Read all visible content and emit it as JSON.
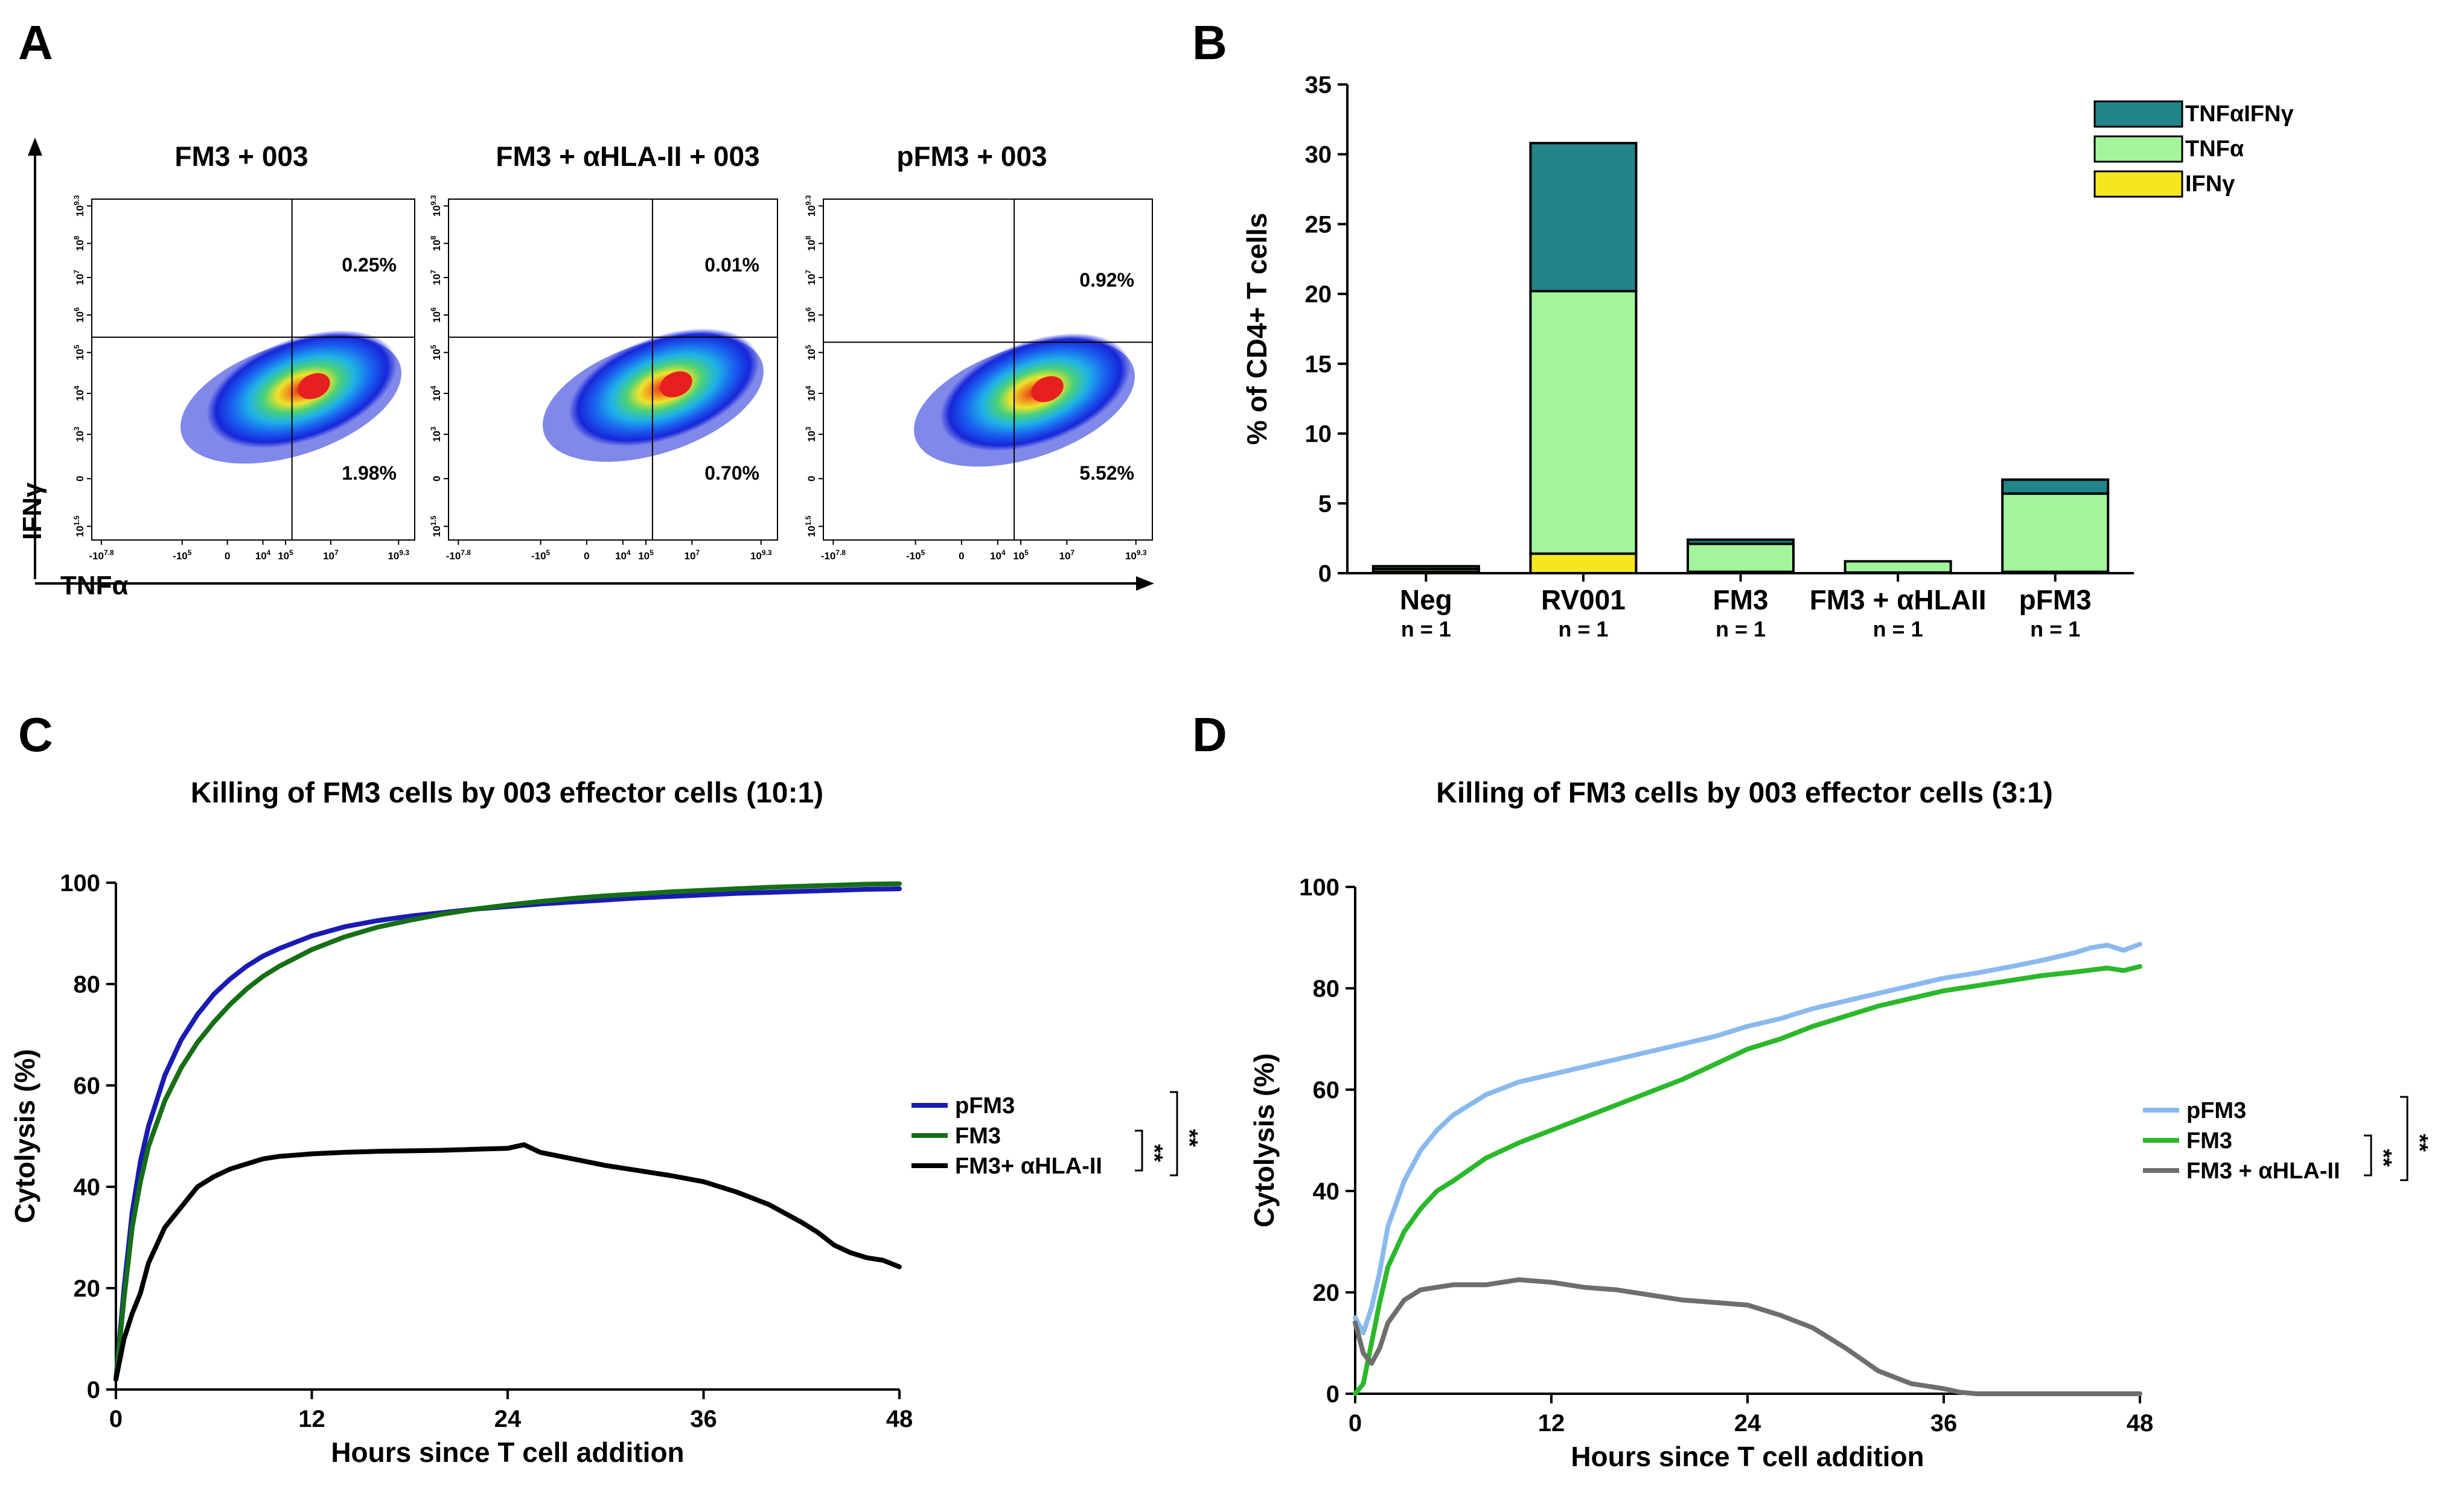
{
  "panel_labels": {
    "a": "A",
    "b": "B",
    "c": "C",
    "d": "D"
  },
  "flow": {
    "y_axis_label": "IFNγ",
    "x_axis_label": "TNFα",
    "x_ticks": [
      "-10^7.8",
      "-10^5",
      "0",
      "10^4",
      "10^5",
      "10^7",
      "10^9.3"
    ],
    "y_ticks": [
      "10^9.3",
      "10^8",
      "10^7",
      "10^6",
      "10^5",
      "10^4",
      "10^3",
      "0",
      "10^1.5"
    ],
    "plots": [
      {
        "title": "FM3 + 003",
        "upper_right_pct": "0.25%",
        "lower_right_pct": "1.98%"
      },
      {
        "title": "FM3 + αHLA-II +  003",
        "upper_right_pct": "0.01%",
        "lower_right_pct": "0.70%"
      },
      {
        "title": "pFM3 + 003",
        "upper_right_pct": "0.92%",
        "lower_right_pct": "5.52%"
      }
    ]
  },
  "chart_data": [
    {
      "type": "bar",
      "stacked": true,
      "title": "",
      "ylabel": "% of CD4+ T cells",
      "ylim": [
        0,
        35
      ],
      "yticks": [
        0,
        5,
        10,
        15,
        20,
        25,
        30,
        35
      ],
      "categories": [
        "Neg",
        "RV001",
        "FM3",
        "FM3 + αHLAII",
        "pFM3"
      ],
      "n_labels": [
        "n = 1",
        "n = 1",
        "n = 1",
        "n = 1",
        "n = 1"
      ],
      "series": [
        {
          "name": "IFNγ",
          "color": "#f5e61e",
          "values": [
            0.1,
            1.4,
            0.1,
            0.05,
            0.1
          ]
        },
        {
          "name": "TNFα",
          "color": "#a3f59c",
          "values": [
            0.2,
            18.8,
            2.0,
            0.8,
            5.6
          ]
        },
        {
          "name": "TNFαIFNγ",
          "color": "#23848a",
          "values": [
            0.2,
            10.6,
            0.3,
            0.0,
            1.0
          ]
        }
      ],
      "legend_order": [
        "TNFαIFNγ",
        "TNFα",
        "IFNγ"
      ],
      "legend_position": "top-right"
    },
    {
      "type": "line",
      "title": "Killing of FM3 cells by 003 effector cells (10:1)",
      "xlabel": "Hours since T cell addition",
      "ylabel": "Cytolysis (%)",
      "xlim": [
        0,
        48
      ],
      "ylim": [
        0,
        100
      ],
      "xticks": [
        0,
        12,
        24,
        36,
        48
      ],
      "yticks": [
        0,
        20,
        40,
        60,
        80,
        100
      ],
      "significance": [
        "**",
        "**"
      ],
      "series": [
        {
          "name": "pFM3",
          "color": "#1a1ab4",
          "x": [
            0,
            0.5,
            1,
            1.5,
            2,
            3,
            4,
            5,
            6,
            7,
            8,
            9,
            10,
            12,
            14,
            16,
            18,
            20,
            22,
            24,
            26,
            28,
            30,
            32,
            34,
            36,
            38,
            40,
            42,
            44,
            46,
            48
          ],
          "y": [
            2,
            20,
            35,
            45,
            52,
            62,
            69,
            74,
            78,
            81,
            83.5,
            85.5,
            87,
            89.5,
            91.3,
            92.5,
            93.4,
            94.1,
            94.8,
            95.3,
            95.8,
            96.2,
            96.6,
            97,
            97.3,
            97.6,
            97.9,
            98.1,
            98.3,
            98.5,
            98.7,
            98.8
          ]
        },
        {
          "name": "FM3",
          "color": "#166e16",
          "x": [
            0,
            0.5,
            1,
            1.5,
            2,
            3,
            4,
            5,
            6,
            7,
            8,
            9,
            10,
            12,
            14,
            16,
            18,
            20,
            22,
            24,
            26,
            28,
            30,
            32,
            34,
            36,
            38,
            40,
            42,
            44,
            46,
            48
          ],
          "y": [
            2,
            18,
            32,
            41,
            48,
            57,
            63.5,
            68.5,
            72.5,
            76,
            79,
            81.5,
            83.5,
            86.8,
            89.3,
            91.2,
            92.6,
            93.8,
            94.8,
            95.6,
            96.3,
            96.9,
            97.4,
            97.8,
            98.2,
            98.5,
            98.8,
            99.1,
            99.3,
            99.5,
            99.7,
            99.8
          ]
        },
        {
          "name": "FM3+ αHLA-II",
          "color": "#000000",
          "x": [
            0,
            0.5,
            1,
            1.5,
            2,
            3,
            4,
            5,
            6,
            7,
            8,
            9,
            10,
            12,
            14,
            16,
            18,
            20,
            22,
            24,
            25,
            26,
            28,
            30,
            32,
            34,
            36,
            38,
            40,
            42,
            43,
            44,
            45,
            46,
            47,
            48
          ],
          "y": [
            2,
            10,
            15,
            19,
            25,
            32,
            36,
            40,
            42,
            43.5,
            44.5,
            45.5,
            46,
            46.5,
            46.8,
            47,
            47.1,
            47.2,
            47.4,
            47.6,
            48.3,
            46.8,
            45.5,
            44.2,
            43.2,
            42.2,
            41,
            39,
            36.5,
            33,
            31,
            28.5,
            27,
            26,
            25.5,
            24.2
          ]
        }
      ]
    },
    {
      "type": "line",
      "title": "Killing of FM3 cells by 003 effector cells (3:1)",
      "xlabel": "Hours since T cell addition",
      "ylabel": "Cytolysis (%)",
      "xlim": [
        0,
        48
      ],
      "ylim": [
        0,
        100
      ],
      "xticks": [
        0,
        12,
        24,
        36,
        48
      ],
      "yticks": [
        0,
        20,
        40,
        60,
        80,
        100
      ],
      "significance": [
        "**",
        "**"
      ],
      "series": [
        {
          "name": "pFM3",
          "color": "#8ab9ee",
          "x": [
            0,
            0.5,
            1,
            1.5,
            2,
            3,
            4,
            5,
            6,
            8,
            10,
            12,
            14,
            16,
            18,
            20,
            22,
            24,
            26,
            28,
            30,
            32,
            34,
            36,
            38,
            40,
            42,
            44,
            45,
            46,
            47,
            48
          ],
          "y": [
            15,
            12,
            17,
            24,
            33,
            42,
            48,
            52,
            55,
            59,
            61.5,
            63,
            64.5,
            66,
            67.5,
            69,
            70.5,
            72.5,
            74,
            76,
            77.5,
            79,
            80.5,
            82,
            83,
            84.2,
            85.5,
            87,
            88,
            88.5,
            87.5,
            88.7
          ]
        },
        {
          "name": "FM3",
          "color": "#2bb82b",
          "x": [
            0,
            0.5,
            1,
            1.5,
            2,
            3,
            4,
            5,
            6,
            8,
            10,
            12,
            14,
            16,
            18,
            20,
            22,
            24,
            26,
            28,
            30,
            32,
            34,
            36,
            38,
            40,
            42,
            44,
            46,
            47,
            48
          ],
          "y": [
            0,
            2,
            10,
            18,
            25,
            32,
            36.5,
            40,
            42,
            46.5,
            49.5,
            52,
            54.5,
            57,
            59.5,
            62,
            65,
            68,
            70,
            72.5,
            74.5,
            76.5,
            78,
            79.5,
            80.5,
            81.5,
            82.5,
            83.2,
            84,
            83.5,
            84.3
          ]
        },
        {
          "name": "FM3 + αHLA-II",
          "color": "#6e6e6e",
          "x": [
            0,
            0.5,
            1,
            1.5,
            2,
            3,
            4,
            5,
            6,
            8,
            10,
            12,
            14,
            16,
            18,
            20,
            22,
            24,
            26,
            28,
            30,
            32,
            34,
            36,
            37,
            38,
            40,
            44,
            48
          ],
          "y": [
            14,
            8,
            6,
            9,
            14,
            18.5,
            20.5,
            21,
            21.5,
            21.5,
            22.5,
            22,
            21,
            20.5,
            19.5,
            18.5,
            18,
            17.5,
            15.5,
            13,
            9,
            4.5,
            2,
            1,
            0.3,
            0,
            0,
            0,
            0
          ]
        }
      ]
    }
  ]
}
